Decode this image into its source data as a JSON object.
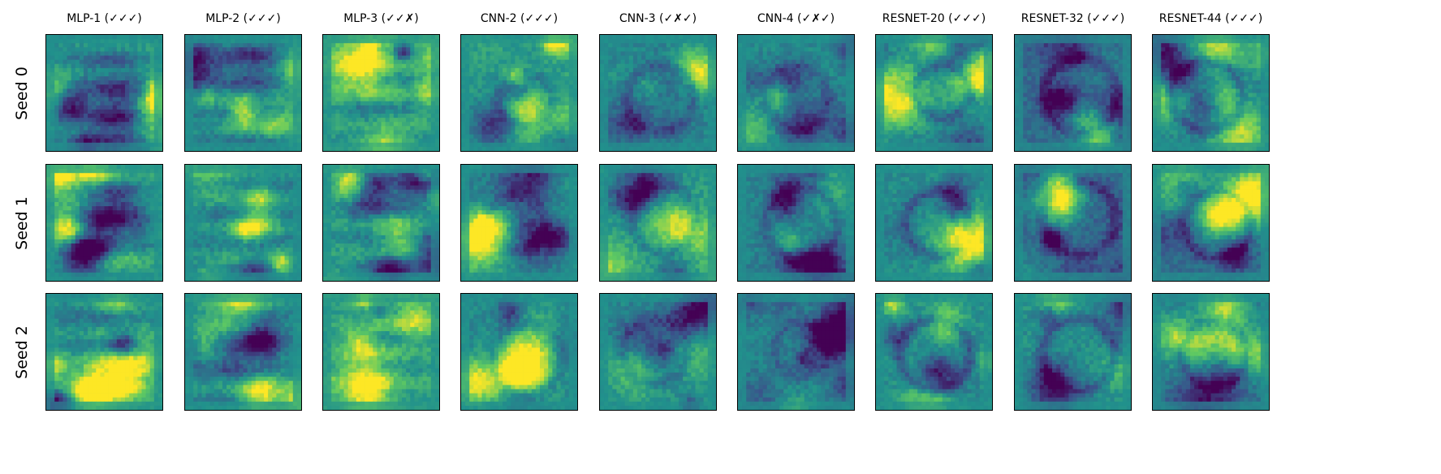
{
  "figure": {
    "columns": [
      {
        "title": "MLP-1 (✓✓✓)"
      },
      {
        "title": "MLP-2 (✓✓✓)"
      },
      {
        "title": "MLP-3 (✓✓✗)"
      },
      {
        "title": "CNN-2 (✓✓✓)"
      },
      {
        "title": "CNN-3 (✓✗✓)"
      },
      {
        "title": "CNN-4 (✓✗✓)"
      },
      {
        "title": "RESNET-20 (✓✓✓)"
      },
      {
        "title": "RESNET-32 (✓✓✓)"
      },
      {
        "title": "RESNET-44 (✓✓✓)"
      }
    ],
    "rows": [
      {
        "label": "Seed 0"
      },
      {
        "label": "Seed 1"
      },
      {
        "label": "Seed 2"
      }
    ],
    "colormap": [
      "#440154",
      "#3b528b",
      "#21918c",
      "#5ec962",
      "#fde725"
    ]
  }
}
